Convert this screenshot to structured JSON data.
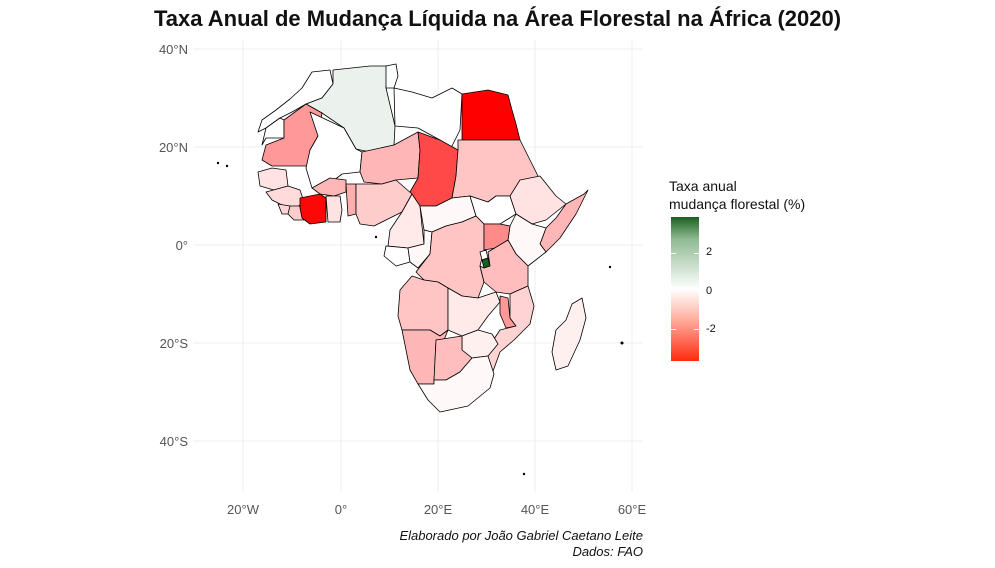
{
  "title": "Taxa Anual de Mudança Líquida na Área Florestal na África (2020)",
  "axes": {
    "lat_labels": [
      "40°N",
      "20°N",
      "0°",
      "20°S",
      "40°S"
    ],
    "lon_labels": [
      "20°W",
      "0°",
      "20°E",
      "40°E",
      "60°E"
    ]
  },
  "legend": {
    "title_line1": "Taxa anual",
    "title_line2": "mudança florestal (%)",
    "ticks": [
      "2",
      "0",
      "-2"
    ]
  },
  "caption": {
    "line1": "Elaborado por João Gabriel Caetano Leite",
    "line2": "Dados: FAO"
  },
  "colors": {
    "high": "#1b5e20",
    "zero": "#ffffff",
    "low": "#ff0000",
    "grid": "#ececec",
    "border": "#000000"
  },
  "regions": [
    {
      "name": "Morocco",
      "value": 0.0
    },
    {
      "name": "Algeria",
      "value": 0.3
    },
    {
      "name": "Tunisia",
      "value": 0.0
    },
    {
      "name": "Libya",
      "value": 0.0
    },
    {
      "name": "Egypt",
      "value": -3.5
    },
    {
      "name": "Western Sahara",
      "value": 0.0
    },
    {
      "name": "Mauritania",
      "value": -1.4
    },
    {
      "name": "Mali",
      "value": 0.0
    },
    {
      "name": "Niger",
      "value": -1.0
    },
    {
      "name": "Chad",
      "value": -2.5
    },
    {
      "name": "Sudan",
      "value": -0.8
    },
    {
      "name": "Senegal",
      "value": -0.4
    },
    {
      "name": "Guinea",
      "value": -0.5
    },
    {
      "name": "Sierra Leone",
      "value": -0.6
    },
    {
      "name": "Liberia",
      "value": -0.7
    },
    {
      "name": "Cote d'Ivoire",
      "value": -3.4
    },
    {
      "name": "Burkina Faso",
      "value": -1.0
    },
    {
      "name": "Ghana",
      "value": -0.4
    },
    {
      "name": "Benin",
      "value": -1.1
    },
    {
      "name": "Nigeria",
      "value": -0.7
    },
    {
      "name": "Cameroon",
      "value": -0.3
    },
    {
      "name": "Central African Republic",
      "value": -0.1
    },
    {
      "name": "South Sudan",
      "value": 0.0
    },
    {
      "name": "Ethiopia",
      "value": -0.4
    },
    {
      "name": "Somalia",
      "value": -1.0
    },
    {
      "name": "Kenya",
      "value": -0.1
    },
    {
      "name": "Gabon",
      "value": 0.0
    },
    {
      "name": "Congo",
      "value": -0.1
    },
    {
      "name": "DR Congo",
      "value": -0.8
    },
    {
      "name": "Uganda",
      "value": -1.6
    },
    {
      "name": "Rwanda",
      "value": 0.0
    },
    {
      "name": "Burundi",
      "value": 3.5
    },
    {
      "name": "Tanzania",
      "value": -0.9
    },
    {
      "name": "Angola",
      "value": -0.8
    },
    {
      "name": "Zambia",
      "value": -0.3
    },
    {
      "name": "Malawi",
      "value": -1.4
    },
    {
      "name": "Mozambique",
      "value": -0.6
    },
    {
      "name": "Zimbabwe",
      "value": -0.2
    },
    {
      "name": "Namibia",
      "value": -1.0
    },
    {
      "name": "Botswana",
      "value": -0.9
    },
    {
      "name": "South Africa",
      "value": -0.1
    },
    {
      "name": "Madagascar",
      "value": -0.2
    }
  ]
}
